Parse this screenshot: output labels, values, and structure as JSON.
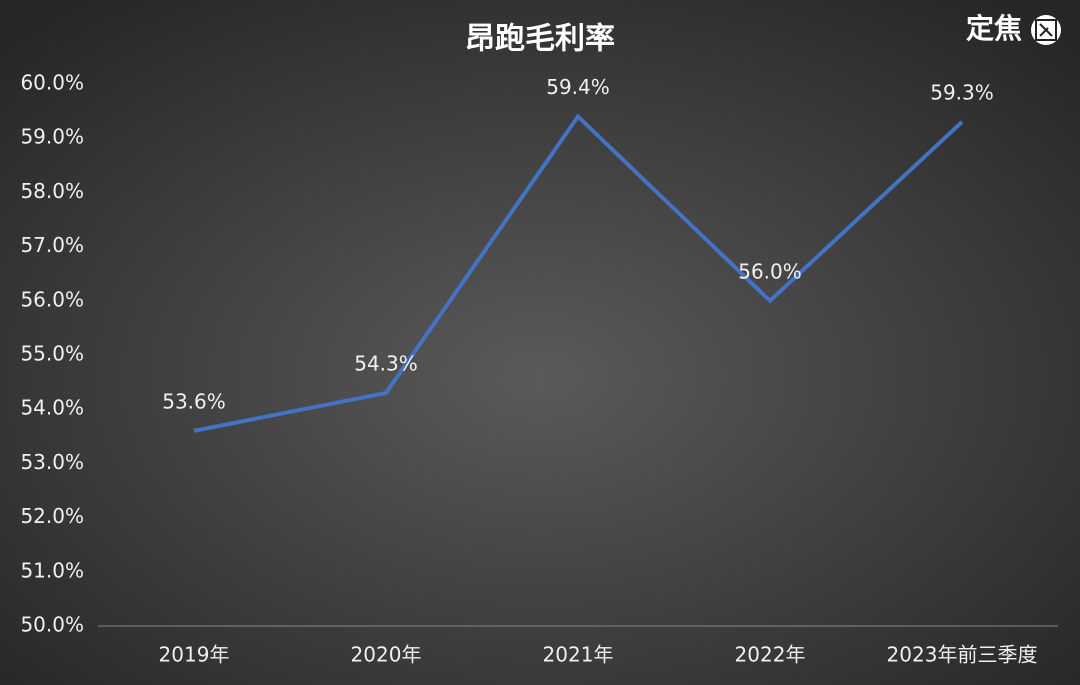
{
  "chart_data": {
    "type": "line",
    "title": "昂跑毛利率",
    "watermark": "定焦",
    "categories": [
      "2019年",
      "2020年",
      "2021年",
      "2022年",
      "2023年前三季度"
    ],
    "series": [
      {
        "name": "毛利率",
        "color": "#4472c4",
        "values": [
          53.6,
          54.3,
          59.4,
          56.0,
          59.3
        ],
        "value_labels": [
          "53.6%",
          "54.3%",
          "59.4%",
          "56.0%",
          "59.3%"
        ]
      }
    ],
    "ylim": [
      50,
      60
    ],
    "yticks": [
      {
        "value": 50,
        "label": "50.0%"
      },
      {
        "value": 51,
        "label": "51.0%"
      },
      {
        "value": 52,
        "label": "52.0%"
      },
      {
        "value": 53,
        "label": "53.0%"
      },
      {
        "value": 54,
        "label": "54.0%"
      },
      {
        "value": 55,
        "label": "55.0%"
      },
      {
        "value": 56,
        "label": "56.0%"
      },
      {
        "value": 57,
        "label": "57.0%"
      },
      {
        "value": 58,
        "label": "58.0%"
      },
      {
        "value": 59,
        "label": "59.0%"
      },
      {
        "value": 60,
        "label": "60.0%"
      }
    ],
    "grid": false
  }
}
